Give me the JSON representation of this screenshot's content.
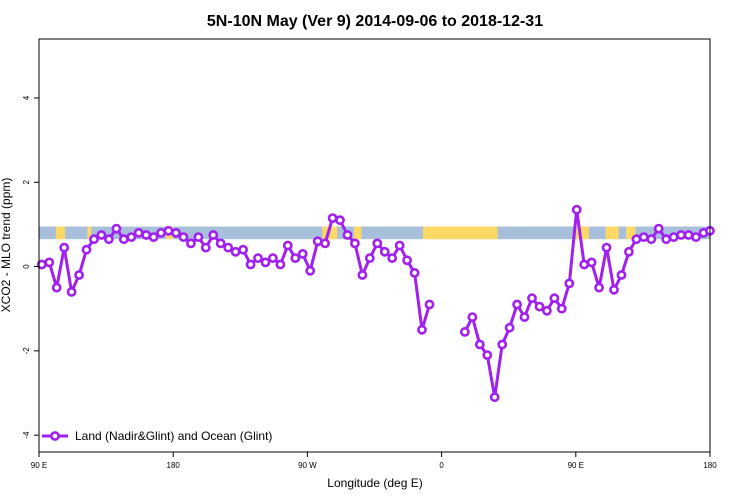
{
  "chart_data": {
    "type": "line",
    "title": "5N-10N May (Ver 9)   2014-09-06 to 2018-12-31",
    "xlabel": "Longitude (deg E)",
    "ylabel": "XCO2 - MLO trend (ppm)",
    "xlim": [
      -180,
      180
    ],
    "ylim": [
      -4.4,
      5.4
    ],
    "x_ticks": [
      {
        "value": -180,
        "label": "90 E"
      },
      {
        "value": -108,
        "label": "180"
      },
      {
        "value": -36,
        "label": "90 W"
      },
      {
        "value": 36,
        "label": "0"
      },
      {
        "value": 108,
        "label": "90 E"
      },
      {
        "value": 180,
        "label": "180"
      }
    ],
    "y_ticks": [
      {
        "value": -4,
        "label": "-4"
      },
      {
        "value": -2,
        "label": "-2"
      },
      {
        "value": 0,
        "label": "0"
      },
      {
        "value": 2,
        "label": "2"
      },
      {
        "value": 4,
        "label": "4"
      }
    ],
    "grid": false,
    "legend": {
      "position": "bottom-left",
      "entries": [
        "Land (Nadir&Glint) and Ocean (Glint)"
      ]
    },
    "colors": {
      "series": "#a020f0",
      "ocean": "#a8bfdc",
      "land": "#ffd966"
    },
    "land_band": {
      "y_range": [
        0.65,
        0.95
      ],
      "land_x_ranges": [
        [
          -171,
          -166
        ],
        [
          -154,
          -152
        ],
        [
          -112,
          -108
        ],
        [
          -28,
          -20
        ],
        [
          -11,
          -7
        ],
        [
          26,
          66
        ],
        [
          108,
          115
        ],
        [
          124,
          131
        ],
        [
          135,
          140
        ]
      ]
    },
    "series": [
      {
        "name": "Land (Nadir&Glint) and Ocean (Glint)",
        "segments": [
          [
            [
              -178.5,
              0.05
            ],
            [
              -174.5,
              0.1
            ],
            [
              -170.5,
              -0.5
            ],
            [
              -166.5,
              0.45
            ],
            [
              -162.5,
              -0.6
            ],
            [
              -158.5,
              -0.2
            ],
            [
              -154.5,
              0.4
            ],
            [
              -150.5,
              0.65
            ],
            [
              -146.5,
              0.75
            ],
            [
              -142.5,
              0.65
            ],
            [
              -138.5,
              0.9
            ],
            [
              -134.5,
              0.65
            ],
            [
              -130.5,
              0.7
            ],
            [
              -126.5,
              0.8
            ],
            [
              -122.5,
              0.75
            ],
            [
              -118.5,
              0.7
            ],
            [
              -114.5,
              0.8
            ],
            [
              -110.5,
              0.85
            ],
            [
              -106.5,
              0.8
            ],
            [
              -102.5,
              0.7
            ],
            [
              -98.5,
              0.55
            ],
            [
              -94.5,
              0.7
            ],
            [
              -90.5,
              0.45
            ],
            [
              -86.5,
              0.75
            ],
            [
              -82.5,
              0.55
            ],
            [
              -78.5,
              0.45
            ],
            [
              -74.5,
              0.35
            ],
            [
              -70.5,
              0.4
            ],
            [
              -66.5,
              0.05
            ],
            [
              -62.5,
              0.2
            ],
            [
              -58.5,
              0.1
            ],
            [
              -54.5,
              0.2
            ],
            [
              -50.5,
              0.05
            ],
            [
              -46.5,
              0.5
            ],
            [
              -42.5,
              0.2
            ],
            [
              -38.5,
              0.3
            ],
            [
              -34.5,
              -0.1
            ],
            [
              -30.5,
              0.6
            ],
            [
              -26.5,
              0.55
            ],
            [
              -22.5,
              1.15
            ],
            [
              -18.5,
              1.1
            ],
            [
              -14.5,
              0.75
            ],
            [
              -10.5,
              0.55
            ],
            [
              -6.5,
              -0.2
            ],
            [
              -2.5,
              0.2
            ],
            [
              1.5,
              0.55
            ],
            [
              5.5,
              0.35
            ],
            [
              9.5,
              0.2
            ],
            [
              13.5,
              0.5
            ],
            [
              17.5,
              0.15
            ],
            [
              21.5,
              -0.15
            ],
            [
              25.5,
              -1.5
            ],
            [
              29.5,
              -0.9
            ]
          ],
          [
            [
              48.5,
              -1.55
            ],
            [
              52.5,
              -1.2
            ],
            [
              56.5,
              -1.85
            ],
            [
              60.5,
              -2.1
            ],
            [
              64.5,
              -3.1
            ],
            [
              68.5,
              -1.85
            ],
            [
              72.5,
              -1.45
            ],
            [
              76.5,
              -0.9
            ],
            [
              80.5,
              -1.2
            ],
            [
              84.5,
              -0.75
            ],
            [
              88.5,
              -0.95
            ],
            [
              92.5,
              -1.05
            ],
            [
              96.5,
              -0.75
            ],
            [
              100.5,
              -1.0
            ],
            [
              104.5,
              -0.4
            ],
            [
              108.5,
              1.35
            ],
            [
              112.5,
              0.05
            ],
            [
              116.5,
              0.1
            ],
            [
              120.5,
              -0.5
            ],
            [
              124.5,
              0.45
            ],
            [
              128.5,
              -0.55
            ],
            [
              132.5,
              -0.2
            ],
            [
              136.5,
              0.35
            ],
            [
              140.5,
              0.65
            ],
            [
              144.5,
              0.7
            ],
            [
              148.5,
              0.65
            ],
            [
              152.5,
              0.9
            ],
            [
              156.5,
              0.65
            ],
            [
              160.5,
              0.7
            ],
            [
              164.5,
              0.75
            ],
            [
              168.5,
              0.75
            ],
            [
              172.5,
              0.7
            ],
            [
              176.5,
              0.8
            ],
            [
              180,
              0.85
            ]
          ]
        ]
      }
    ]
  }
}
